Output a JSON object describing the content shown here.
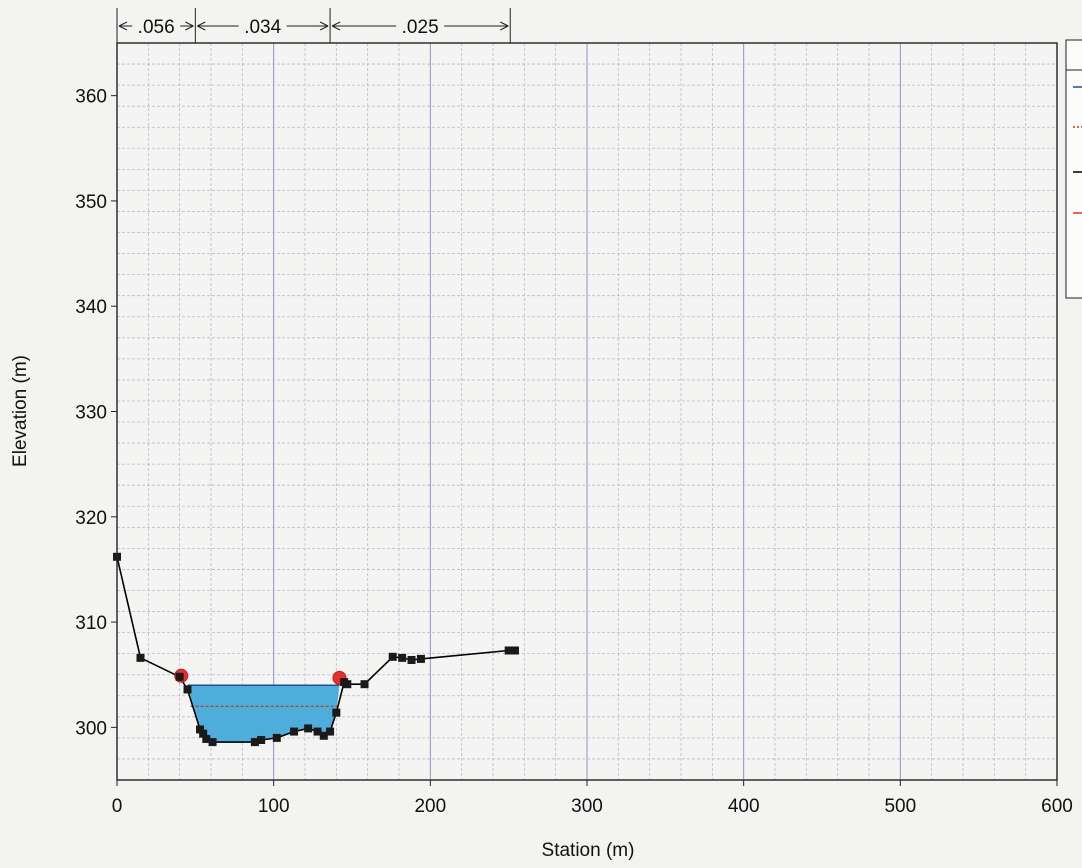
{
  "chart_data": {
    "type": "line",
    "title": "",
    "xlabel": "Station (m)",
    "ylabel": "Elevation (m)",
    "xlim": [
      0,
      600
    ],
    "ylim": [
      295,
      365
    ],
    "x_ticks": [
      0,
      100,
      200,
      300,
      400,
      500,
      600
    ],
    "y_ticks": [
      300,
      310,
      320,
      330,
      340,
      350,
      360
    ],
    "grid": true,
    "legend": "top-right (cut off)",
    "manning_n": [
      {
        "label": ".056",
        "from": 0,
        "to": 50
      },
      {
        "label": ".034",
        "from": 50,
        "to": 136
      },
      {
        "label": ".025",
        "from": 136,
        "to": 251
      }
    ],
    "series": [
      {
        "role": "ground",
        "color": "#000000",
        "points": [
          [
            0,
            316.2
          ],
          [
            15,
            306.6
          ],
          [
            40,
            304.8
          ],
          [
            45,
            303.6
          ],
          [
            53,
            299.8
          ],
          [
            55,
            299.4
          ],
          [
            57,
            298.9
          ],
          [
            61,
            298.6
          ],
          [
            88,
            298.6
          ],
          [
            92,
            298.8
          ],
          [
            102,
            299.0
          ],
          [
            113,
            299.6
          ],
          [
            122,
            299.9
          ],
          [
            128,
            299.6
          ],
          [
            132,
            299.2
          ],
          [
            136,
            299.6
          ],
          [
            140,
            301.4
          ],
          [
            145,
            304.3
          ],
          [
            147,
            304.1
          ],
          [
            158,
            304.1
          ],
          [
            176,
            306.7
          ],
          [
            182,
            306.6
          ],
          [
            188,
            306.4
          ],
          [
            194,
            306.5
          ],
          [
            250,
            307.3
          ],
          [
            254,
            307.3
          ]
        ]
      },
      {
        "role": "water-surface",
        "color": "#1e4f9c",
        "fill": "#4eaedb",
        "elevation": 304.0,
        "x_range": [
          45,
          142
        ]
      },
      {
        "role": "critical-depth",
        "color": "#c2401e",
        "elevation": 302.0,
        "x_range": [
          47,
          141
        ]
      },
      {
        "role": "bank-stations",
        "color": "#e8302a",
        "points": [
          [
            41,
            304.9
          ],
          [
            142,
            304.7
          ]
        ]
      }
    ]
  }
}
